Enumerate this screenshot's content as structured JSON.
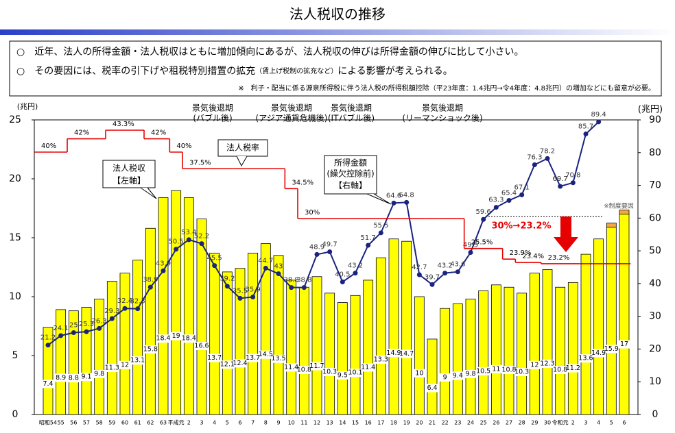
{
  "header": {
    "title": "法人税収の推移"
  },
  "notes": {
    "bullet1": "○　近年、法人の所得金額・法人税収はともに増加傾向にあるが、法人税収の伸びは所得金額の伸びに比して小さい。",
    "bullet2a": "○　その要因には、税率の引下げや租税特別措置の拡充",
    "bullet2_small": "（賃上げ税制の拡充など）",
    "bullet2b": "による影響が考えられる。",
    "footnote": "※　利子・配当に係る源泉所得税に伴う法人税の所得税額控除（平23年度：1.4兆円→令4年度：4.8兆円）の増加などにも留意が必要。"
  },
  "chart_data": {
    "type": "bar_line",
    "y_label": "(兆円)",
    "y2_label": "(兆円)",
    "categories": [
      "昭和54",
      "55",
      "56",
      "57",
      "58",
      "59",
      "60",
      "61",
      "62",
      "63",
      "平成元",
      "2",
      "3",
      "4",
      "5",
      "6",
      "7",
      "8",
      "9",
      "10",
      "11",
      "12",
      "13",
      "14",
      "15",
      "16",
      "17",
      "18",
      "19",
      "20",
      "21",
      "22",
      "23",
      "24",
      "25",
      "26",
      "27",
      "28",
      "29",
      "30",
      "令和元",
      "2",
      "3",
      "4",
      "5",
      "6"
    ],
    "ylim": [
      0,
      25
    ],
    "yticks": [
      0,
      5,
      10,
      15,
      20,
      25
    ],
    "y2lim": [
      0,
      90
    ],
    "y2ticks": [
      0,
      10,
      20,
      30,
      40,
      50,
      60,
      70,
      80,
      90
    ],
    "series": [
      {
        "name": "法人税収",
        "axis_note": "【左軸】",
        "color": "#ffff00",
        "values": [
          7.4,
          8.9,
          8.8,
          9.1,
          9.8,
          11.3,
          12.0,
          13.1,
          15.8,
          18.4,
          19.0,
          18.4,
          16.6,
          13.7,
          12.1,
          12.4,
          13.7,
          14.5,
          13.5,
          11.4,
          10.8,
          11.7,
          10.3,
          9.5,
          10.1,
          11.4,
          13.3,
          14.9,
          14.7,
          10.0,
          6.4,
          9.0,
          9.4,
          9.8,
          10.5,
          11.0,
          10.8,
          10.3,
          12.0,
          12.3,
          10.8,
          11.2,
          13.6,
          14.9,
          15.9,
          17.0
        ]
      },
      {
        "name": "所得金額",
        "sub": "(繰欠控除前)",
        "axis_note": "【右軸】",
        "color": "#1a237e",
        "axis": "y2",
        "values": [
          21.2,
          24.1,
          25.0,
          25.3,
          26.3,
          29.3,
          32.4,
          32.3,
          38.9,
          43.9,
          50.5,
          53.4,
          52.2,
          45.5,
          39.2,
          35.5,
          35.9,
          44.7,
          43.0,
          38.8,
          38.8,
          48.9,
          49.7,
          40.5,
          43.2,
          51.7,
          55.5,
          64.6,
          64.8,
          42.7,
          39.7,
          43.2,
          43.6,
          49.5,
          59.6,
          63.3,
          65.4,
          67.1,
          76.3,
          78.2,
          69.7,
          70.8,
          85.7,
          89.4,
          null,
          null
        ]
      }
    ],
    "tax_rate": {
      "name": "法人税率",
      "color": "#e60000",
      "values": [
        40,
        40,
        42,
        42,
        42,
        43.3,
        43.3,
        43.3,
        42,
        42,
        40,
        37.5,
        37.5,
        37.5,
        37.5,
        37.5,
        37.5,
        37.5,
        37.5,
        34.5,
        30,
        30,
        30,
        30,
        30,
        30,
        30,
        30,
        30,
        30,
        30,
        30,
        30,
        25.5,
        25.5,
        25.5,
        23.9,
        23.4,
        23.4,
        23.2,
        23.2,
        23.2,
        23.2,
        23.2,
        23.2,
        23.2
      ],
      "value_labels": [
        "40%",
        null,
        "42%",
        null,
        null,
        "43.3%",
        null,
        null,
        "42%",
        null,
        "40%",
        "37.5%",
        null,
        null,
        null,
        null,
        null,
        null,
        null,
        "34.5%",
        "30%",
        null,
        null,
        null,
        null,
        null,
        null,
        null,
        null,
        null,
        null,
        null,
        null,
        "25.5%",
        null,
        null,
        "23.9%",
        "23.4%",
        null,
        "23.2%",
        null,
        null,
        null,
        null,
        null,
        null
      ]
    },
    "recessions": [
      {
        "title": "景気後退期",
        "sub": "(バブル後)"
      },
      {
        "title": "景気後退期",
        "sub": "(アジア通貨危機後)"
      },
      {
        "title": "景気後退期",
        "sub": "(ITバブル後)"
      },
      {
        "title": "景気後退期",
        "sub": "(リーマンショック後)"
      }
    ],
    "annotations": {
      "rate_drop": "30%→23.2%",
      "institutional": "※制度要因"
    }
  }
}
